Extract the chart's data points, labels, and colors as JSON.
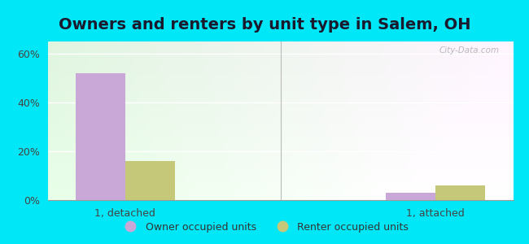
{
  "title": "Owners and renters by unit type in Salem, OH",
  "categories": [
    "1, detached",
    "1, attached"
  ],
  "owner_values": [
    52,
    3
  ],
  "renter_values": [
    16,
    6
  ],
  "owner_color": "#c9a8d8",
  "renter_color": "#c5c878",
  "bar_width": 0.32,
  "ylim": [
    0,
    65
  ],
  "yticks": [
    0,
    20,
    40,
    60
  ],
  "ytick_labels": [
    "0%",
    "20%",
    "40%",
    "60%"
  ],
  "outer_bg": "#00e8f8",
  "legend_labels": [
    "Owner occupied units",
    "Renter occupied units"
  ],
  "watermark": "City-Data.com",
  "title_fontsize": 14,
  "label_fontsize": 9,
  "group_positions": [
    0.5,
    2.5
  ],
  "xlim": [
    0,
    3.0
  ],
  "divider_x": 1.5,
  "bg_color_tl": "#d8f0d8",
  "bg_color_tr": "#e8f8f0",
  "bg_color_br": "#f5fff5"
}
